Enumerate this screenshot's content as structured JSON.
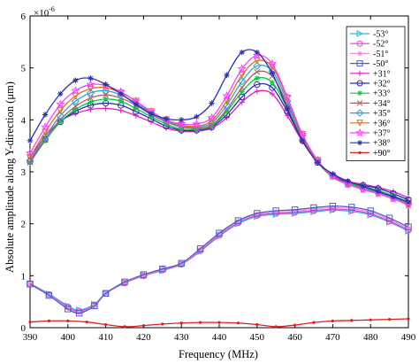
{
  "chart_data": {
    "type": "line",
    "xlabel": "Frequency (MHz)",
    "ylabel": "Absolute amplitude along Y-direction (μm)",
    "y_multiplier_label": "×10",
    "y_multiplier_exponent": "-6",
    "xlim": [
      390,
      490
    ],
    "ylim": [
      0,
      6
    ],
    "x_ticks": [
      390,
      400,
      410,
      420,
      430,
      440,
      450,
      460,
      470,
      480,
      490
    ],
    "y_ticks": [
      0,
      1,
      2,
      3,
      4,
      5,
      6
    ],
    "grid": false,
    "legend_position": "top-right",
    "series": [
      {
        "name": "-53°",
        "color": "#35b6e8",
        "marker": "triangle-right",
        "x": [
          390,
          395,
          400,
          403,
          407,
          410,
          415,
          420,
          425,
          430,
          435,
          440,
          445,
          450,
          455,
          460,
          465,
          470,
          475,
          480,
          485,
          490
        ],
        "y": [
          0.85,
          0.65,
          0.42,
          0.34,
          0.45,
          0.66,
          0.86,
          1.0,
          1.1,
          1.22,
          1.47,
          1.76,
          2.0,
          2.14,
          2.18,
          2.2,
          2.23,
          2.26,
          2.24,
          2.17,
          2.03,
          1.86
        ]
      },
      {
        "name": "-52°",
        "color": "#e040e0",
        "marker": "circle",
        "x": [
          390,
          395,
          400,
          403,
          407,
          410,
          415,
          420,
          425,
          430,
          435,
          440,
          445,
          450,
          455,
          460,
          465,
          470,
          475,
          480,
          485,
          490
        ],
        "y": [
          0.85,
          0.64,
          0.4,
          0.32,
          0.44,
          0.66,
          0.86,
          1.0,
          1.11,
          1.22,
          1.48,
          1.78,
          2.02,
          2.16,
          2.2,
          2.22,
          2.25,
          2.28,
          2.26,
          2.19,
          2.05,
          1.88
        ]
      },
      {
        "name": "-51°",
        "color": "#f08cd8",
        "marker": "asterisk",
        "x": [
          390,
          395,
          400,
          403,
          407,
          410,
          415,
          420,
          425,
          430,
          435,
          440,
          445,
          450,
          455,
          460,
          465,
          470,
          475,
          480,
          485,
          490
        ],
        "y": [
          0.84,
          0.63,
          0.38,
          0.3,
          0.43,
          0.66,
          0.87,
          1.01,
          1.12,
          1.23,
          1.5,
          1.8,
          2.04,
          2.18,
          2.22,
          2.24,
          2.28,
          2.31,
          2.29,
          2.22,
          2.08,
          1.91
        ]
      },
      {
        "name": "-50°",
        "color": "#4a5ec8",
        "marker": "square",
        "x": [
          390,
          395,
          400,
          403,
          407,
          410,
          415,
          420,
          425,
          430,
          435,
          440,
          445,
          450,
          455,
          460,
          465,
          470,
          475,
          480,
          485,
          490
        ],
        "y": [
          0.84,
          0.62,
          0.36,
          0.28,
          0.42,
          0.66,
          0.88,
          1.02,
          1.13,
          1.24,
          1.52,
          1.82,
          2.06,
          2.2,
          2.25,
          2.27,
          2.31,
          2.34,
          2.32,
          2.25,
          2.11,
          1.94
        ]
      },
      {
        "name": "+31°",
        "color": "#e020c0",
        "marker": "plus",
        "x": [
          390,
          394,
          398,
          402,
          406,
          410,
          414,
          418,
          422,
          426,
          430,
          434,
          438,
          442,
          446,
          450,
          454,
          458,
          462,
          466,
          470,
          474,
          478,
          482,
          486,
          490
        ],
        "y": [
          3.28,
          3.68,
          3.98,
          4.12,
          4.2,
          4.22,
          4.18,
          4.08,
          3.96,
          3.84,
          3.78,
          3.78,
          3.84,
          4.04,
          4.34,
          4.55,
          4.5,
          4.08,
          3.58,
          3.18,
          2.94,
          2.82,
          2.76,
          2.7,
          2.62,
          2.5
        ]
      },
      {
        "name": "+32°",
        "color": "#2c2ca8",
        "marker": "circle",
        "x": [
          390,
          394,
          398,
          402,
          406,
          410,
          414,
          418,
          422,
          426,
          430,
          434,
          438,
          442,
          446,
          450,
          454,
          458,
          462,
          466,
          470,
          474,
          478,
          482,
          486,
          490
        ],
        "y": [
          3.2,
          3.62,
          3.96,
          4.16,
          4.28,
          4.32,
          4.28,
          4.16,
          4.02,
          3.88,
          3.8,
          3.8,
          3.86,
          4.1,
          4.44,
          4.68,
          4.62,
          4.16,
          3.6,
          3.18,
          2.92,
          2.8,
          2.74,
          2.68,
          2.58,
          2.46
        ]
      },
      {
        "name": "+33°",
        "color": "#00cc44",
        "marker": "asterisk",
        "x": [
          390,
          394,
          398,
          402,
          406,
          410,
          414,
          418,
          422,
          426,
          430,
          434,
          438,
          442,
          446,
          450,
          454,
          458,
          462,
          466,
          470,
          474,
          478,
          482,
          486,
          490
        ],
        "y": [
          3.18,
          3.6,
          3.96,
          4.2,
          4.34,
          4.4,
          4.36,
          4.22,
          4.06,
          3.92,
          3.82,
          3.82,
          3.88,
          4.16,
          4.54,
          4.8,
          4.72,
          4.22,
          3.62,
          3.18,
          2.9,
          2.78,
          2.72,
          2.64,
          2.54,
          2.42
        ]
      },
      {
        "name": "+34°",
        "color": "#b06060",
        "marker": "cross",
        "x": [
          390,
          394,
          398,
          402,
          406,
          410,
          414,
          418,
          422,
          426,
          430,
          434,
          438,
          442,
          446,
          450,
          454,
          458,
          462,
          466,
          470,
          474,
          478,
          482,
          486,
          490
        ],
        "y": [
          3.18,
          3.62,
          4.0,
          4.26,
          4.42,
          4.48,
          4.42,
          4.28,
          4.1,
          3.96,
          3.86,
          3.84,
          3.9,
          4.2,
          4.62,
          4.92,
          4.84,
          4.3,
          3.66,
          3.2,
          2.9,
          2.76,
          2.7,
          2.62,
          2.52,
          2.4
        ]
      },
      {
        "name": "+35°",
        "color": "#30a0d8",
        "marker": "diamond",
        "x": [
          390,
          394,
          398,
          402,
          406,
          410,
          414,
          418,
          422,
          426,
          430,
          434,
          438,
          442,
          446,
          450,
          454,
          458,
          462,
          466,
          470,
          474,
          478,
          482,
          486,
          490
        ],
        "y": [
          3.22,
          3.68,
          4.08,
          4.36,
          4.52,
          4.56,
          4.48,
          4.32,
          4.14,
          3.98,
          3.88,
          3.86,
          3.94,
          4.28,
          4.74,
          5.04,
          4.94,
          4.36,
          3.7,
          3.22,
          2.92,
          2.76,
          2.68,
          2.6,
          2.5,
          2.38
        ]
      },
      {
        "name": "+36°",
        "color": "#d87020",
        "marker": "triangle-down",
        "x": [
          390,
          394,
          398,
          402,
          406,
          410,
          414,
          418,
          422,
          426,
          430,
          434,
          438,
          442,
          446,
          450,
          454,
          458,
          462,
          466,
          470,
          474,
          478,
          482,
          486,
          490
        ],
        "y": [
          3.28,
          3.76,
          4.18,
          4.46,
          4.6,
          4.62,
          4.52,
          4.36,
          4.16,
          4.0,
          3.9,
          3.88,
          3.98,
          4.36,
          4.86,
          5.14,
          5.02,
          4.42,
          3.72,
          3.22,
          2.92,
          2.76,
          2.66,
          2.58,
          2.48,
          2.36
        ]
      },
      {
        "name": "+37°",
        "color": "#ff40ff",
        "marker": "star",
        "x": [
          390,
          394,
          398,
          402,
          406,
          410,
          414,
          418,
          422,
          426,
          430,
          434,
          438,
          442,
          446,
          450,
          454,
          458,
          462,
          466,
          470,
          474,
          478,
          482,
          486,
          490
        ],
        "y": [
          3.36,
          3.86,
          4.3,
          4.56,
          4.68,
          4.66,
          4.54,
          4.36,
          4.16,
          4.0,
          3.92,
          3.92,
          4.04,
          4.46,
          4.98,
          5.24,
          5.08,
          4.44,
          3.72,
          3.22,
          2.92,
          2.76,
          2.66,
          2.58,
          2.48,
          2.36
        ]
      },
      {
        "name": "+38°",
        "color": "#3030b0",
        "marker": "asterisk",
        "x": [
          390,
          394,
          398,
          402,
          406,
          410,
          414,
          418,
          422,
          426,
          430,
          434,
          438,
          442,
          446,
          450,
          454,
          458,
          462,
          466,
          470,
          474,
          478,
          482,
          486,
          490
        ],
        "y": [
          3.6,
          4.1,
          4.5,
          4.76,
          4.8,
          4.68,
          4.5,
          4.3,
          4.12,
          4.02,
          4.0,
          4.06,
          4.32,
          4.86,
          5.3,
          5.3,
          4.9,
          4.22,
          3.6,
          3.18,
          2.96,
          2.82,
          2.72,
          2.62,
          2.52,
          2.42
        ]
      },
      {
        "name": "+90°",
        "color": "#e02020",
        "marker": "dot",
        "x": [
          390,
          395,
          400,
          405,
          410,
          415,
          420,
          425,
          430,
          435,
          440,
          445,
          450,
          455,
          460,
          465,
          470,
          475,
          480,
          485,
          490
        ],
        "y": [
          0.11,
          0.13,
          0.13,
          0.11,
          0.06,
          0.02,
          0.04,
          0.07,
          0.09,
          0.1,
          0.1,
          0.09,
          0.06,
          0.02,
          0.05,
          0.1,
          0.13,
          0.14,
          0.15,
          0.16,
          0.17
        ]
      }
    ]
  }
}
